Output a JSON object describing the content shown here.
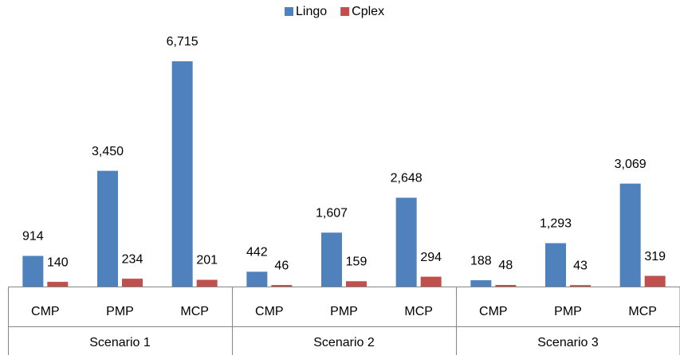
{
  "chart_data": {
    "type": "bar",
    "categories": [
      "CMP",
      "PMP",
      "MCP",
      "CMP",
      "PMP",
      "MCP",
      "CMP",
      "PMP",
      "MCP"
    ],
    "groups": [
      "Scenario 1",
      "Scenario 2",
      "Scenario 3"
    ],
    "series": [
      {
        "name": "Lingo",
        "color": "#4f81bd",
        "values": [
          914,
          3450,
          6715,
          442,
          1607,
          2648,
          188,
          1293,
          3069
        ],
        "value_labels": [
          "914",
          "3,450",
          "6,715",
          "442",
          "1,607",
          "2,648",
          "188",
          "1,293",
          "3,069"
        ]
      },
      {
        "name": "Cplex",
        "color": "#c0504d",
        "values": [
          140,
          234,
          201,
          46,
          159,
          294,
          48,
          43,
          319
        ]
      }
    ],
    "ylim": [
      0,
      7000
    ],
    "legend": "top"
  }
}
